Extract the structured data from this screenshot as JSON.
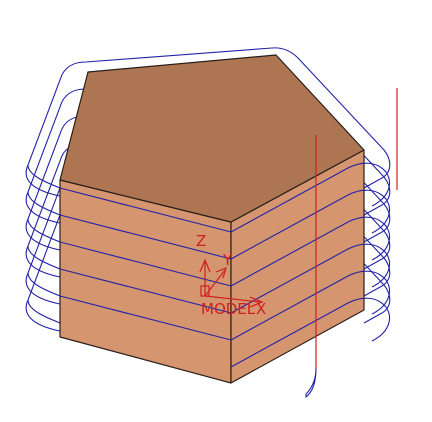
{
  "viewport": {
    "background": "#ffffff",
    "colors": {
      "top_face": "#ad7552",
      "side_face": "#d4956f",
      "edge": "#2a1f1a",
      "toolpath": "#2323a8",
      "tool_axis": "#d01f1f",
      "triad": "#d01f1f"
    }
  },
  "triad": {
    "z_label": "Z",
    "y_label": "Y",
    "x_label": "X",
    "csys_label": "MODEL"
  }
}
